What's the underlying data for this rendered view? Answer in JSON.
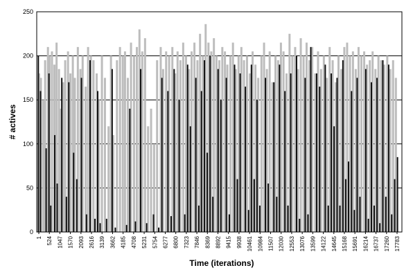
{
  "chart_data": {
    "type": "bar",
    "title": "",
    "xlabel": "Time (iterations)",
    "ylabel": "# actives",
    "ylim": [
      0,
      250
    ],
    "yticks": [
      0,
      50,
      100,
      150,
      200,
      250
    ],
    "xlim": [
      1,
      18200
    ],
    "xticks": [
      "1",
      "524",
      "1047",
      "1570",
      "2093",
      "2616",
      "3139",
      "3662",
      "4185",
      "4708",
      "5231",
      "5754",
      "6277",
      "6800",
      "7323",
      "7846",
      "8369",
      "8892",
      "9415",
      "9938",
      "10461",
      "10984",
      "11507",
      "12030",
      "12553",
      "13076",
      "13599",
      "14122",
      "14645",
      "15168",
      "15691",
      "16214",
      "16737",
      "17260",
      "17783"
    ],
    "grid": true,
    "legend": "none",
    "colors": {
      "light_series": "#bdbdbd",
      "dark_series": "#111111",
      "grid": "#000000"
    },
    "series": [
      {
        "values_light": [
          [
            120,
            180
          ],
          [
            210,
            175
          ],
          [
            330,
            150
          ],
          [
            420,
            195
          ],
          [
            560,
            210
          ],
          [
            640,
            200
          ],
          [
            760,
            205
          ],
          [
            880,
            190
          ],
          [
            990,
            215
          ],
          [
            1110,
            185
          ],
          [
            1190,
            140
          ],
          [
            1320,
            170
          ],
          [
            1420,
            195
          ],
          [
            1560,
            205
          ],
          [
            1680,
            180
          ],
          [
            1800,
            200
          ],
          [
            1900,
            175
          ],
          [
            2050,
            210
          ],
          [
            2180,
            185
          ],
          [
            2290,
            200
          ],
          [
            2440,
            165
          ],
          [
            2560,
            210
          ],
          [
            2700,
            200
          ],
          [
            2830,
            195
          ],
          [
            2990,
            180
          ],
          [
            3100,
            150
          ],
          [
            3250,
            200
          ],
          [
            3400,
            175
          ],
          [
            3580,
            120
          ],
          [
            3700,
            200
          ],
          [
            3820,
            110
          ],
          [
            4000,
            195
          ],
          [
            4150,
            210
          ],
          [
            4290,
            200
          ],
          [
            4400,
            205
          ],
          [
            4540,
            175
          ],
          [
            4700,
            215
          ],
          [
            4850,
            200
          ],
          [
            4990,
            210
          ],
          [
            5120,
            230
          ],
          [
            5260,
            205
          ],
          [
            5400,
            220
          ],
          [
            5550,
            120
          ],
          [
            5700,
            140
          ],
          [
            5850,
            100
          ],
          [
            6000,
            195
          ],
          [
            6180,
            210
          ],
          [
            6300,
            185
          ],
          [
            6450,
            205
          ],
          [
            6600,
            200
          ],
          [
            6760,
            210
          ],
          [
            6900,
            180
          ],
          [
            7020,
            205
          ],
          [
            7160,
            195
          ],
          [
            7300,
            215
          ],
          [
            7440,
            200
          ],
          [
            7590,
            185
          ],
          [
            7720,
            205
          ],
          [
            7860,
            215
          ],
          [
            8010,
            195
          ],
          [
            8140,
            225
          ],
          [
            8280,
            200
          ],
          [
            8420,
            236
          ],
          [
            8560,
            215
          ],
          [
            8700,
            205
          ],
          [
            8830,
            220
          ],
          [
            8960,
            200
          ],
          [
            9100,
            195
          ],
          [
            9250,
            210
          ],
          [
            9380,
            205
          ],
          [
            9500,
            190
          ],
          [
            9650,
            200
          ],
          [
            9780,
            215
          ],
          [
            9920,
            185
          ],
          [
            10060,
            200
          ],
          [
            10200,
            210
          ],
          [
            10330,
            195
          ],
          [
            10480,
            200
          ],
          [
            10620,
            180
          ],
          [
            10760,
            205
          ],
          [
            10900,
            190
          ],
          [
            11040,
            175
          ],
          [
            11200,
            200
          ],
          [
            11330,
            215
          ],
          [
            11470,
            185
          ],
          [
            11610,
            205
          ],
          [
            11750,
            170
          ],
          [
            11900,
            200
          ],
          [
            12030,
            195
          ],
          [
            12170,
            215
          ],
          [
            12300,
            205
          ],
          [
            12450,
            180
          ],
          [
            12600,
            225
          ],
          [
            12740,
            200
          ],
          [
            12880,
            210
          ],
          [
            13020,
            185
          ],
          [
            13160,
            220
          ],
          [
            13300,
            200
          ],
          [
            13450,
            215
          ],
          [
            13590,
            195
          ],
          [
            13730,
            210
          ],
          [
            13880,
            180
          ],
          [
            14020,
            205
          ],
          [
            14170,
            185
          ],
          [
            14310,
            200
          ],
          [
            14460,
            175
          ],
          [
            14600,
            210
          ],
          [
            14750,
            195
          ],
          [
            14900,
            170
          ],
          [
            15040,
            200
          ],
          [
            15180,
            185
          ],
          [
            15330,
            210
          ],
          [
            15470,
            215
          ],
          [
            15610,
            200
          ],
          [
            15760,
            205
          ],
          [
            15900,
            185
          ],
          [
            16040,
            210
          ],
          [
            16180,
            200
          ],
          [
            16320,
            205
          ],
          [
            16460,
            190
          ],
          [
            16600,
            195
          ],
          [
            16740,
            205
          ],
          [
            16880,
            185
          ],
          [
            17030,
            200
          ],
          [
            17170,
            195
          ],
          [
            17320,
            190
          ],
          [
            17470,
            200
          ],
          [
            17620,
            185
          ],
          [
            17760,
            195
          ],
          [
            17900,
            175
          ]
        ],
        "values_dark": [
          [
            80,
            200
          ],
          [
            190,
            160
          ],
          [
            470,
            95
          ],
          [
            610,
            180
          ],
          [
            700,
            30
          ],
          [
            900,
            110
          ],
          [
            1020,
            55
          ],
          [
            1250,
            175
          ],
          [
            1480,
            40
          ],
          [
            1600,
            170
          ],
          [
            1840,
            90
          ],
          [
            2000,
            60
          ],
          [
            2230,
            175
          ],
          [
            2480,
            20
          ],
          [
            2660,
            195
          ],
          [
            2900,
            15
          ],
          [
            3040,
            160
          ],
          [
            3160,
            10
          ],
          [
            3480,
            15
          ],
          [
            3760,
            185
          ],
          [
            3920,
            5
          ],
          [
            4480,
            8
          ],
          [
            4640,
            140
          ],
          [
            4920,
            12
          ],
          [
            5180,
            185
          ],
          [
            5480,
            10
          ],
          [
            5820,
            20
          ],
          [
            6080,
            5
          ],
          [
            6240,
            175
          ],
          [
            6540,
            160
          ],
          [
            6700,
            18
          ],
          [
            6850,
            185
          ],
          [
            7100,
            150
          ],
          [
            7380,
            20
          ],
          [
            7520,
            190
          ],
          [
            7660,
            120
          ],
          [
            7930,
            175
          ],
          [
            8080,
            30
          ],
          [
            8210,
            160
          ],
          [
            8360,
            195
          ],
          [
            8500,
            90
          ],
          [
            8640,
            200
          ],
          [
            8780,
            40
          ],
          [
            9040,
            185
          ],
          [
            9180,
            150
          ],
          [
            9450,
            175
          ],
          [
            9600,
            20
          ],
          [
            9860,
            190
          ],
          [
            10000,
            60
          ],
          [
            10140,
            180
          ],
          [
            10400,
            165
          ],
          [
            10560,
            25
          ],
          [
            10700,
            190
          ],
          [
            10840,
            60
          ],
          [
            10980,
            150
          ],
          [
            11120,
            30
          ],
          [
            11400,
            175
          ],
          [
            11540,
            55
          ],
          [
            11820,
            170
          ],
          [
            11960,
            40
          ],
          [
            12100,
            190
          ],
          [
            12370,
            160
          ],
          [
            12520,
            30
          ],
          [
            12660,
            180
          ],
          [
            12950,
            200
          ],
          [
            13100,
            15
          ],
          [
            13380,
            175
          ],
          [
            13520,
            20
          ],
          [
            13660,
            210
          ],
          [
            13950,
            180
          ],
          [
            14100,
            165
          ],
          [
            14380,
            190
          ],
          [
            14530,
            30
          ],
          [
            14680,
            180
          ],
          [
            14820,
            120
          ],
          [
            14970,
            175
          ],
          [
            15110,
            30
          ],
          [
            15260,
            195
          ],
          [
            15400,
            60
          ],
          [
            15540,
            80
          ],
          [
            15690,
            160
          ],
          [
            15830,
            25
          ],
          [
            15970,
            175
          ],
          [
            16110,
            40
          ],
          [
            16400,
            185
          ],
          [
            16530,
            15
          ],
          [
            16680,
            170
          ],
          [
            16820,
            30
          ],
          [
            16960,
            175
          ],
          [
            17100,
            10
          ],
          [
            17250,
            195
          ],
          [
            17400,
            40
          ],
          [
            17540,
            190
          ],
          [
            17690,
            20
          ],
          [
            17840,
            60
          ],
          [
            17980,
            85
          ]
        ]
      }
    ]
  }
}
